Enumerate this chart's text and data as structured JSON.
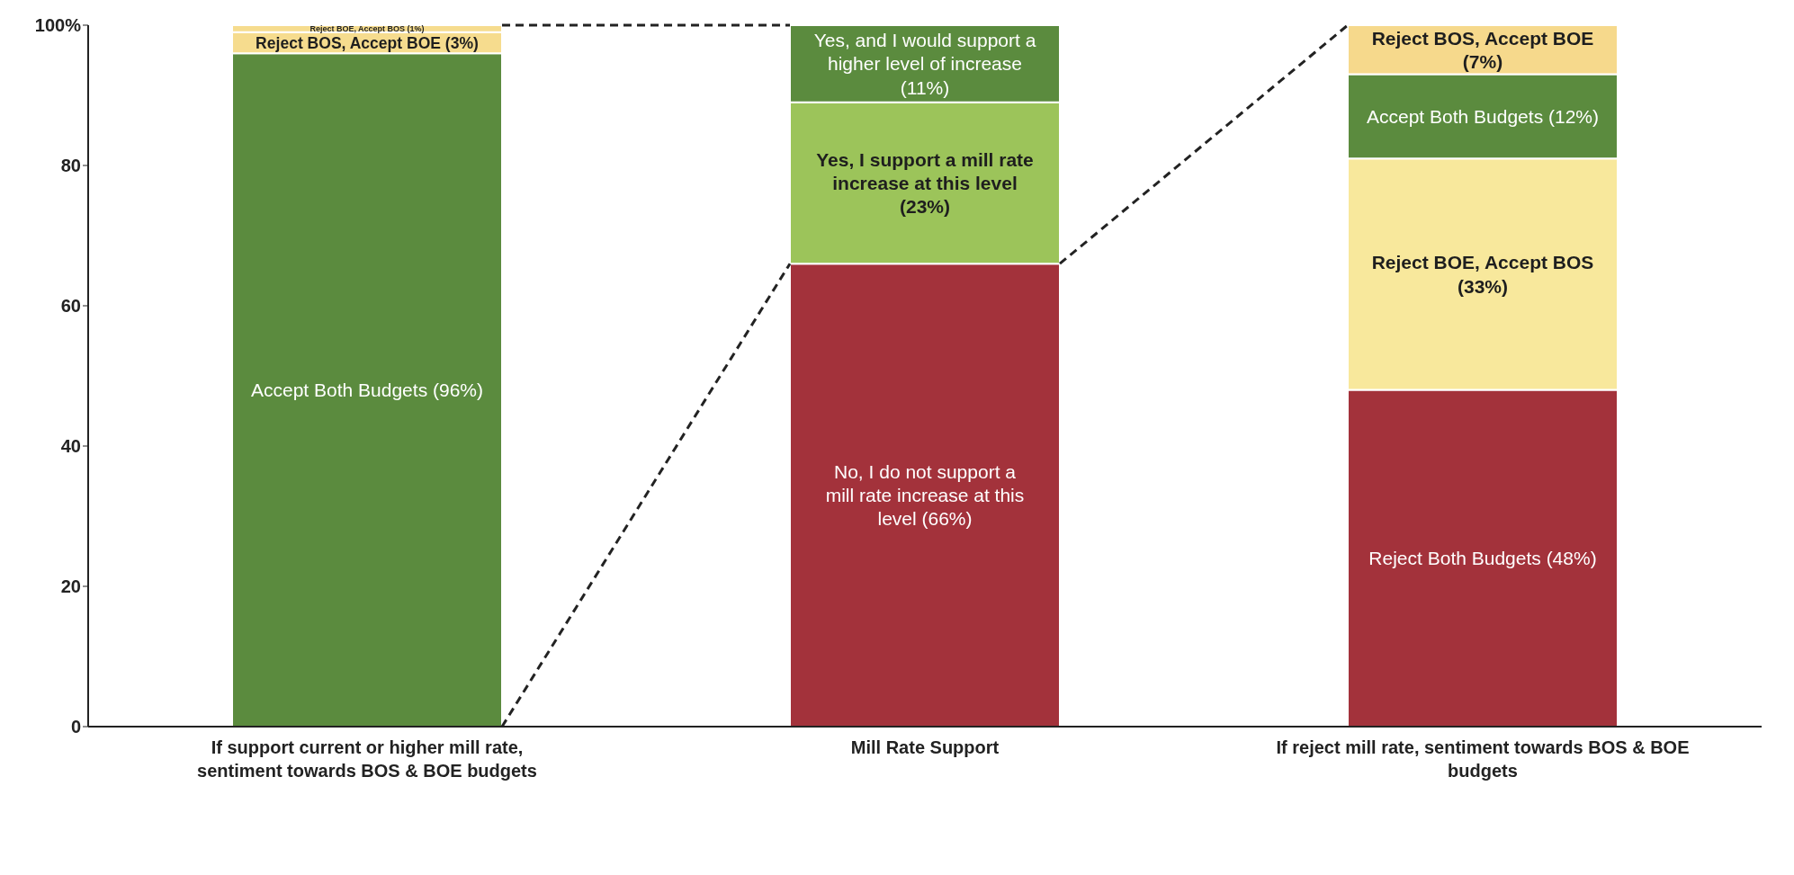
{
  "chart_data": {
    "type": "bar",
    "stacked": true,
    "categories": [
      "If support current or higher mill rate, sentiment towards BOS & BOE budgets",
      "Mill Rate Support",
      "If reject mill rate, sentiment towards BOS & BOE budgets"
    ],
    "series": [
      {
        "values": [
          96,
          66,
          48
        ],
        "colors": [
          "#5b8b3e",
          "#a3323b",
          "#a3323b"
        ],
        "value_labels": [
          "Accept Both Budgets (96%)",
          "No, I do not support a mill rate increase at this level (66%)",
          "Reject Both Budgets (48%)"
        ]
      },
      {
        "values": [
          3,
          23,
          33
        ],
        "colors": [
          "#f6dc8e",
          "#9cc45a",
          "#f8e89c"
        ],
        "value_labels": [
          "Reject BOS, Accept BOE (3%)",
          "Yes, I support a mill rate increase at this level (23%)",
          "Reject BOE, Accept BOS (33%)"
        ]
      },
      {
        "values": [
          1,
          11,
          12
        ],
        "colors": [
          "#f6dc8e",
          "#5b8b3e",
          "#5b8b3e"
        ],
        "value_labels": [
          "Reject BOE, Accept BOS (1%)",
          "Yes, and I would support a higher level of increase (11%)",
          "Accept Both Budgets (12%)"
        ]
      },
      {
        "values": [
          null,
          null,
          7
        ],
        "colors": [
          null,
          null,
          "#f6d98c"
        ],
        "value_labels": [
          null,
          null,
          "Reject BOS, Accept BOE (7%)"
        ]
      }
    ],
    "ylim": [
      0,
      100
    ],
    "yticks": [
      0,
      20,
      40,
      60,
      80,
      {
        "value": 100,
        "label": "100%"
      }
    ],
    "grid": false
  }
}
